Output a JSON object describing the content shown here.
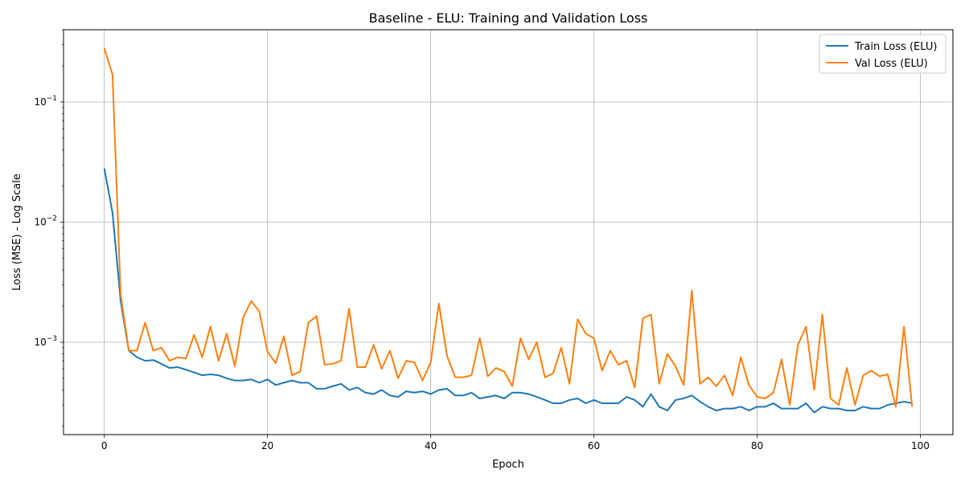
{
  "chart_data": {
    "type": "line",
    "title": "Baseline - ELU: Training and Validation Loss",
    "xlabel": "Epoch",
    "ylabel": "Loss (MSE) - Log Scale",
    "yscale": "log",
    "xlim": [
      -5,
      104
    ],
    "ylim": [
      0.00017,
      0.4
    ],
    "xticks": [
      0,
      20,
      40,
      60,
      80,
      100
    ],
    "xtick_labels": [
      "0",
      "20",
      "40",
      "60",
      "80",
      "100"
    ],
    "yticks": [
      0.001,
      0.01,
      0.1
    ],
    "ytick_labels": [
      {
        "base": "10",
        "exp": "−3"
      },
      {
        "base": "10",
        "exp": "−2"
      },
      {
        "base": "10",
        "exp": "−1"
      }
    ],
    "grid": true,
    "legend_position": "top-right",
    "series": [
      {
        "name": "Train Loss (ELU)",
        "color": "#1f77b4",
        "values": [
          0.028,
          0.012,
          0.0022,
          0.00085,
          0.00075,
          0.0007,
          0.00071,
          0.00066,
          0.00061,
          0.00062,
          0.00059,
          0.00056,
          0.00053,
          0.00054,
          0.00053,
          0.0005,
          0.00048,
          0.00048,
          0.00049,
          0.00046,
          0.00049,
          0.00044,
          0.00046,
          0.00048,
          0.00046,
          0.00046,
          0.00041,
          0.00041,
          0.00043,
          0.00045,
          0.0004,
          0.00042,
          0.00038,
          0.00037,
          0.0004,
          0.00036,
          0.00035,
          0.00039,
          0.00038,
          0.00039,
          0.00037,
          0.0004,
          0.00041,
          0.00036,
          0.00036,
          0.00038,
          0.00034,
          0.00035,
          0.00036,
          0.00034,
          0.00038,
          0.00038,
          0.00037,
          0.00035,
          0.00033,
          0.00031,
          0.00031,
          0.00033,
          0.00034,
          0.00031,
          0.00033,
          0.00031,
          0.00031,
          0.00031,
          0.00035,
          0.00033,
          0.00029,
          0.00037,
          0.00029,
          0.00027,
          0.00033,
          0.00034,
          0.00036,
          0.00032,
          0.00029,
          0.00027,
          0.00028,
          0.00028,
          0.00029,
          0.00027,
          0.00029,
          0.00029,
          0.00031,
          0.00028,
          0.00028,
          0.00028,
          0.00031,
          0.00026,
          0.00029,
          0.00028,
          0.00028,
          0.00027,
          0.00027,
          0.00029,
          0.00028,
          0.00028,
          0.0003,
          0.00031,
          0.00032,
          0.00031
        ]
      },
      {
        "name": "Val Loss (ELU)",
        "color": "#ff7f0e",
        "values": [
          0.28,
          0.17,
          0.0025,
          0.00085,
          0.00085,
          0.00145,
          0.00085,
          0.0009,
          0.0007,
          0.00075,
          0.00073,
          0.00115,
          0.00075,
          0.00135,
          0.0007,
          0.00118,
          0.00063,
          0.0016,
          0.0022,
          0.0018,
          0.00083,
          0.00067,
          0.00112,
          0.00053,
          0.00057,
          0.00145,
          0.00165,
          0.00065,
          0.00066,
          0.0007,
          0.0019,
          0.00062,
          0.00062,
          0.00095,
          0.0006,
          0.00085,
          0.0005,
          0.0007,
          0.00068,
          0.00048,
          0.00068,
          0.0021,
          0.00077,
          0.00051,
          0.00051,
          0.00053,
          0.00108,
          0.00052,
          0.00061,
          0.00057,
          0.00043,
          0.00108,
          0.00072,
          0.001,
          0.00051,
          0.00055,
          0.0009,
          0.00045,
          0.00155,
          0.00118,
          0.00108,
          0.00058,
          0.00085,
          0.00065,
          0.0007,
          0.00042,
          0.00158,
          0.0017,
          0.00045,
          0.0008,
          0.00063,
          0.00044,
          0.0027,
          0.00045,
          0.00051,
          0.00043,
          0.00053,
          0.00036,
          0.00075,
          0.00044,
          0.00035,
          0.00034,
          0.00038,
          0.00072,
          0.0003,
          0.00095,
          0.00135,
          0.0004,
          0.0017,
          0.00034,
          0.0003,
          0.00061,
          0.0003,
          0.00053,
          0.00058,
          0.00052,
          0.00054,
          0.00029,
          0.00135,
          0.00029
        ]
      }
    ]
  }
}
